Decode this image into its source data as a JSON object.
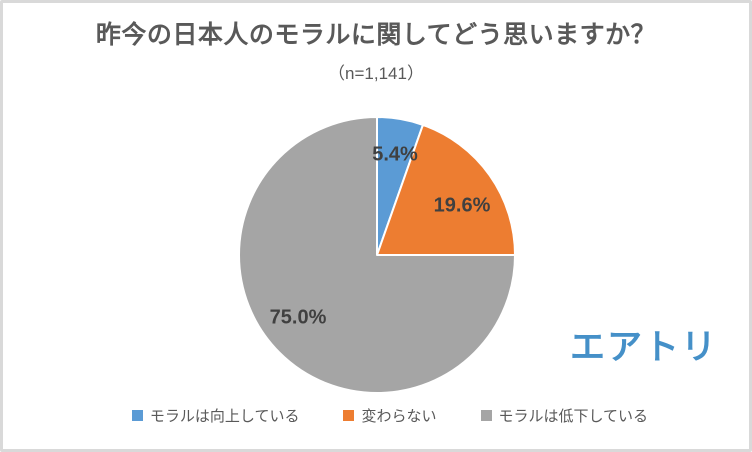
{
  "header": {
    "title": "昨今の日本人のモラルに関してどう思いますか？",
    "subtitle": "（n=1,141）"
  },
  "chart_data": {
    "type": "pie",
    "title": "昨今の日本人のモラルに関してどう思いますか？",
    "sample_size_label": "（n=1,141）",
    "sample_size": 1141,
    "categories": [
      "モラルは向上している",
      "変わらない",
      "モラルは低下している"
    ],
    "values": [
      5.4,
      19.6,
      75.0
    ],
    "labels": [
      "5.4%",
      "19.6%",
      "75.0%"
    ],
    "colors": [
      "#5B9BD5",
      "#ED7D31",
      "#A5A5A5"
    ],
    "start_angle": 0,
    "direction": "clockwise",
    "slice_border_color": "#ffffff",
    "legend_position": "bottom"
  },
  "legend": {
    "items": [
      {
        "label": "モラルは向上している",
        "color": "#5B9BD5"
      },
      {
        "label": "変わらない",
        "color": "#ED7D31"
      },
      {
        "label": "モラルは低下している",
        "color": "#A5A5A5"
      }
    ]
  },
  "logo": {
    "text": "エアトリ",
    "color": "#4590C8"
  },
  "frame": {
    "border_color": "#d9d9d9",
    "background": "#ffffff"
  }
}
